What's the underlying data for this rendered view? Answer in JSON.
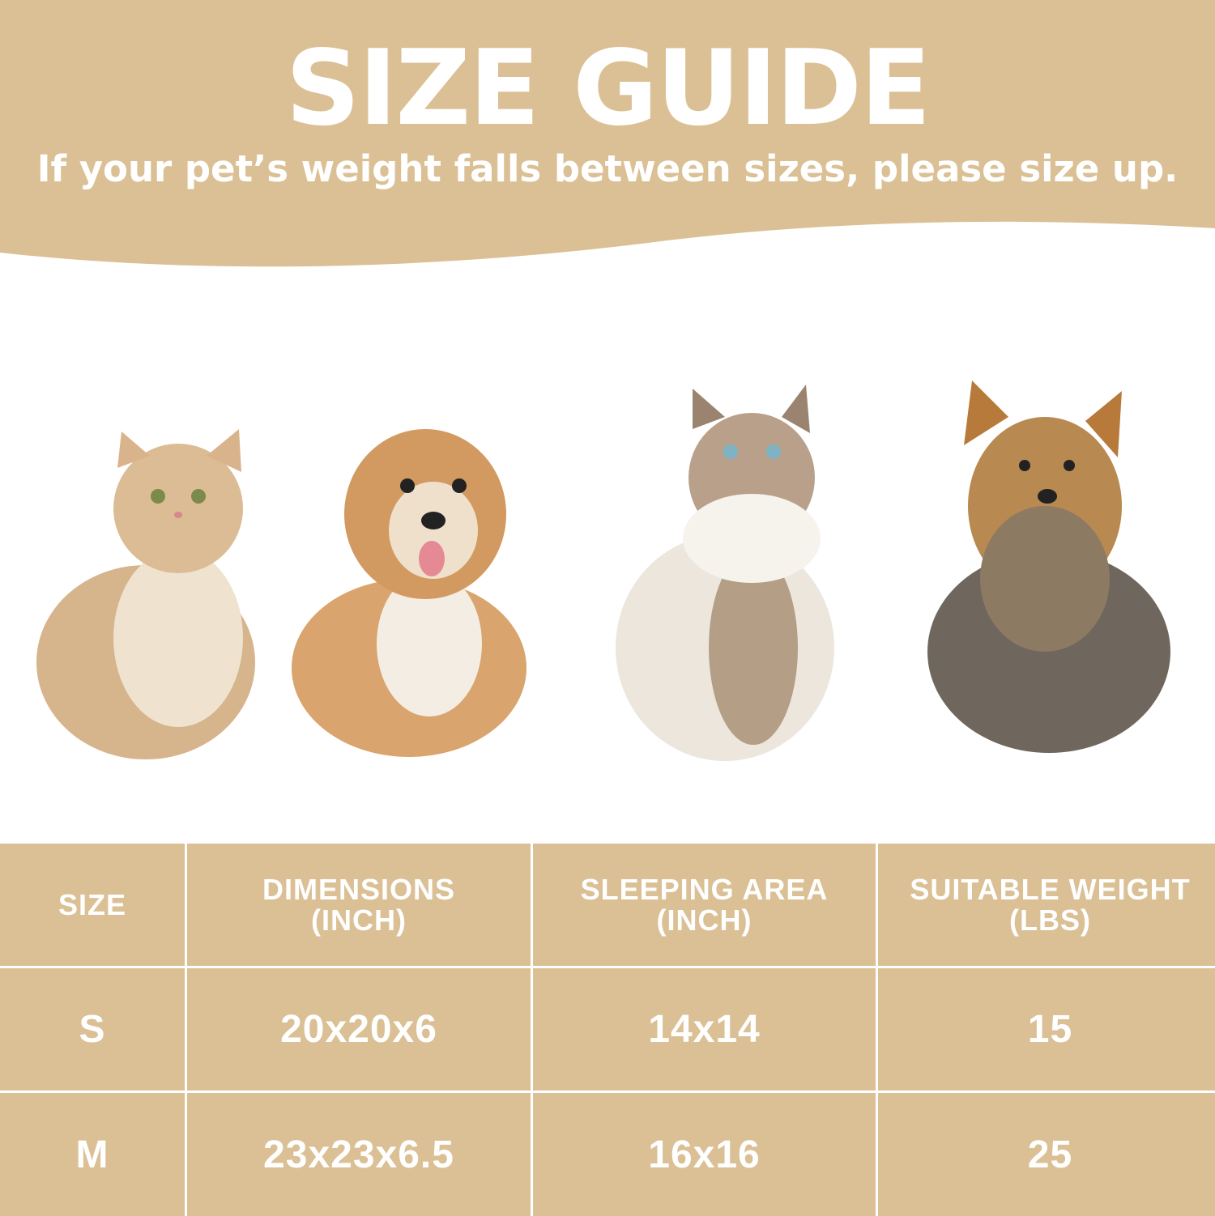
{
  "header": {
    "title": "SIZE GUIDE",
    "subtitle": "If your pet’s weight falls between sizes, please size up."
  },
  "colors": {
    "accent": "#dbc095",
    "text": "#ffffff"
  },
  "images": [
    "cat-british-shorthair",
    "dog-havanese-puppy",
    "cat-ragdoll",
    "dog-yorkshire-terrier"
  ],
  "table": {
    "headers": [
      [
        "SIZE",
        ""
      ],
      [
        "DIMENSIONS",
        "(INCH)"
      ],
      [
        "SLEEPING AREA",
        "(INCH)"
      ],
      [
        "SUITABLE WEIGHT",
        "(LBS)"
      ]
    ],
    "rows": [
      [
        "S",
        "20x20x6",
        "14x14",
        "15"
      ],
      [
        "M",
        "23x23x6.5",
        "16x16",
        "25"
      ]
    ]
  }
}
